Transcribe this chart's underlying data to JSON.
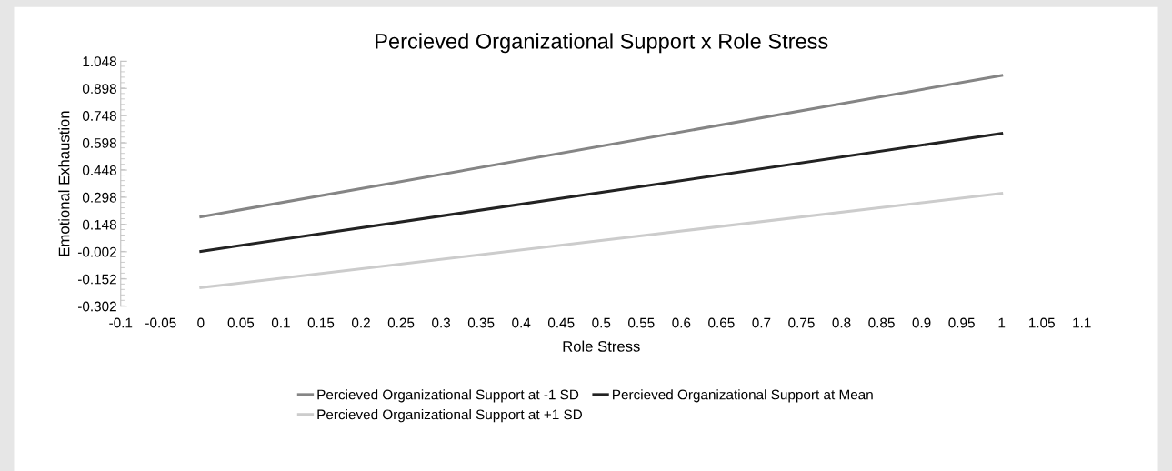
{
  "chart_data": {
    "type": "line",
    "title": "Percieved Organizational Support x Role Stress",
    "xlabel": "Role Stress",
    "ylabel": "Emotional Exhaustion",
    "x": [
      0,
      1
    ],
    "series": [
      {
        "name": "Percieved Organizational Support at -1 SD",
        "color": "#858585",
        "values": [
          0.19,
          0.97
        ]
      },
      {
        "name": "Percieved Organizational Support at Mean",
        "color": "#222222",
        "values": [
          0.0,
          0.65
        ]
      },
      {
        "name": "Percieved Organizational Support at +1 SD",
        "color": "#cccccc",
        "values": [
          -0.2,
          0.32
        ]
      }
    ],
    "xlim": [
      -0.1,
      1.1
    ],
    "xticks": [
      -0.1,
      -0.05,
      0,
      0.05,
      0.1,
      0.15,
      0.2,
      0.25,
      0.3,
      0.35,
      0.4,
      0.45,
      0.5,
      0.55,
      0.6,
      0.65,
      0.7,
      0.75,
      0.8,
      0.85,
      0.9,
      0.95,
      1,
      1.05,
      1.1
    ],
    "ylim": [
      -0.302,
      1.048
    ],
    "yticks": [
      -0.302,
      -0.152,
      -0.002,
      0.148,
      0.298,
      0.448,
      0.598,
      0.748,
      0.898,
      1.048
    ],
    "grid": false,
    "legend": "bottom",
    "marker": "none",
    "line_style": "solid"
  }
}
